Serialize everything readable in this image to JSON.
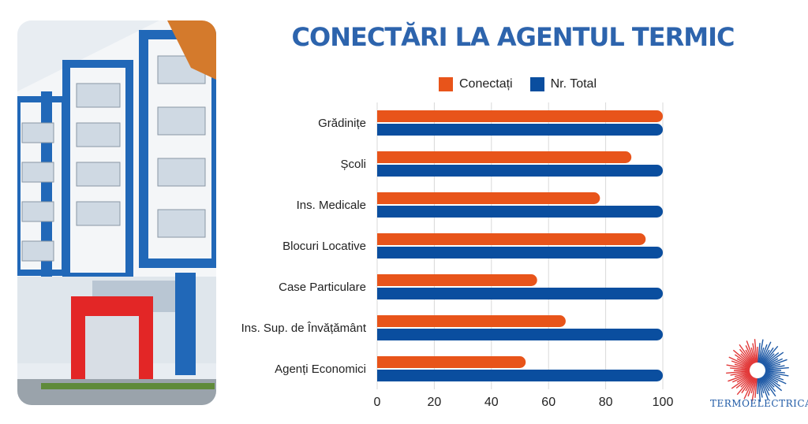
{
  "title": "CONECTĂRI LA AGENTUL TERMIC",
  "legend": {
    "connected": "Conectați",
    "total": "Nr. Total"
  },
  "colors": {
    "title": "#2d64ad",
    "connected": "#e8541a",
    "total": "#0a4e9f",
    "logo_red": "#e23a3a",
    "logo_blue": "#1f5aa6"
  },
  "logo": {
    "text": "TERMOELECTRICA·S·A·"
  },
  "chart_data": {
    "type": "bar",
    "orientation": "horizontal",
    "title": "CONECTĂRI LA AGENTUL TERMIC",
    "categories": [
      "Grădinițe",
      "Școli",
      "Ins. Medicale",
      "Blocuri Locative",
      "Case Particulare",
      "Ins. Sup. de Învățământ",
      "Agenți Economici"
    ],
    "series": [
      {
        "name": "Conectați",
        "values": [
          100,
          89,
          78,
          94,
          56,
          66,
          52
        ]
      },
      {
        "name": "Nr. Total",
        "values": [
          100,
          100,
          100,
          100,
          100,
          100,
          100
        ]
      }
    ],
    "xticks": [
      0,
      20,
      40,
      60,
      80,
      100
    ],
    "xlim": [
      0,
      100
    ],
    "grid": true,
    "legend_position": "top"
  }
}
